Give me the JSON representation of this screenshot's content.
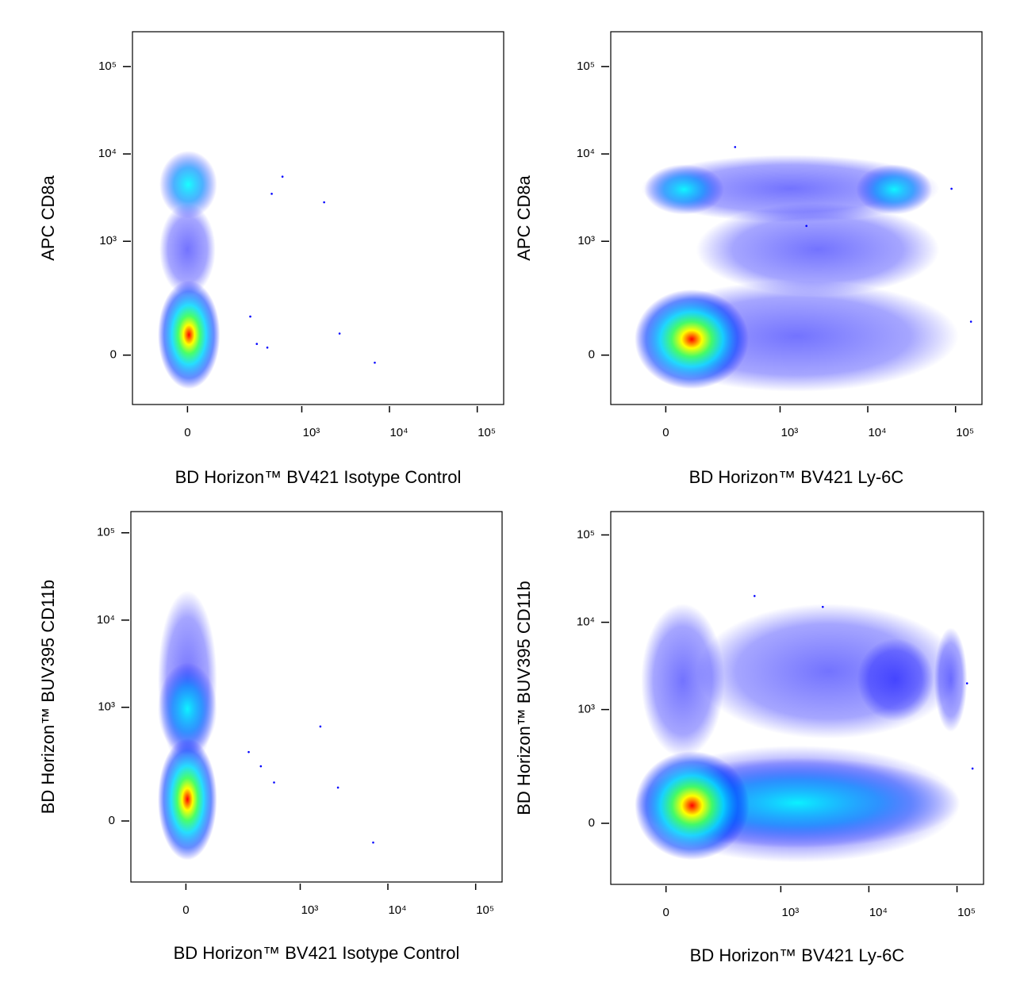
{
  "chart_data": [
    {
      "type": "scatter",
      "scale": "logicle",
      "xlabel": "BD Horizon™ BV421 Isotype Control",
      "ylabel": "APC CD8a",
      "xlim": [
        -200,
        200000
      ],
      "ylim": [
        -170,
        250000
      ],
      "xticks": [
        0,
        {
          "value": 1000,
          "label": "10³"
        },
        {
          "value": 10000,
          "label": "10⁴"
        },
        {
          "value": 100000,
          "label": "10⁵"
        }
      ],
      "yticks": [
        0,
        {
          "value": 1000,
          "label": "10³"
        },
        {
          "value": 10000,
          "label": "10⁴"
        },
        {
          "value": 100000,
          "label": "10⁵"
        }
      ],
      "populations": [
        {
          "x": [
            -70,
            70
          ],
          "y": [
            250,
            2500
          ],
          "color": "#0000ff"
        },
        {
          "x": [
            -70,
            75
          ],
          "y": [
            2000,
            10000
          ],
          "color": "#00ffff"
        },
        {
          "x": [
            -75,
            85
          ],
          "y": [
            -90,
            320
          ],
          "color": "#ff0000"
        }
      ],
      "events": {
        "x": [
          300,
          450,
          600,
          1800,
          2700,
          6800,
          250,
          400
        ],
        "y": [
          30,
          3500,
          5500,
          2800,
          60,
          -20,
          120,
          20
        ],
        "color": "#0000ff"
      }
    },
    {
      "type": "scatter",
      "scale": "logicle",
      "xlabel": "BD Horizon™ BV421 Ly-6C",
      "ylabel": "APC CD8a",
      "xlim": [
        -200,
        200000
      ],
      "ylim": [
        -170,
        250000
      ],
      "xticks": [
        0,
        {
          "value": 1000,
          "label": "10³"
        },
        {
          "value": 10000,
          "label": "10⁴"
        },
        {
          "value": 100000,
          "label": "10⁵"
        }
      ],
      "yticks": [
        0,
        {
          "value": 1000,
          "label": "10³"
        },
        {
          "value": 10000,
          "label": "10⁴"
        },
        {
          "value": 100000,
          "label": "10⁵"
        }
      ],
      "populations": [
        {
          "x": [
            100,
            60000
          ],
          "y": [
            250,
            2500
          ],
          "color": "#0000ff"
        },
        {
          "x": [
            -60,
            60000
          ],
          "y": [
            1800,
            9000
          ],
          "color": "#0000ff"
        },
        {
          "x": [
            -50,
            200
          ],
          "y": [
            2200,
            7000
          ],
          "color": "#00ffff"
        },
        {
          "x": [
            8000,
            50000
          ],
          "y": [
            2200,
            7000
          ],
          "color": "#00ffff"
        },
        {
          "x": [
            -80,
            100000
          ],
          "y": [
            -100,
            320
          ],
          "color": "#0000ff"
        },
        {
          "x": [
            -80,
            400
          ],
          "y": [
            -90,
            250
          ],
          "color": "#ff0000"
        }
      ],
      "events": {
        "x": [
          150000,
          90000,
          300,
          2000
        ],
        "y": [
          100,
          4000,
          12000,
          1500
        ],
        "color": "#0000ff"
      }
    },
    {
      "type": "scatter",
      "scale": "logicle",
      "xlabel": "BD Horizon™ BV421 Isotype Control",
      "ylabel": "BD Horizon™ BUV395 CD11b",
      "xlim": [
        -200,
        200000
      ],
      "ylim": [
        -240,
        175000
      ],
      "xticks": [
        0,
        {
          "value": 1000,
          "label": "10³"
        },
        {
          "value": 10000,
          "label": "10⁴"
        },
        {
          "value": 100000,
          "label": "10⁵"
        }
      ],
      "yticks": [
        0,
        {
          "value": 1000,
          "label": "10³"
        },
        {
          "value": 10000,
          "label": "10⁴"
        },
        {
          "value": 100000,
          "label": "10⁵"
        }
      ],
      "populations": [
        {
          "x": [
            -70,
            80
          ],
          "y": [
            200,
            20000
          ],
          "color": "#0000ff"
        },
        {
          "x": [
            -70,
            80
          ],
          "y": [
            300,
            3000
          ],
          "color": "#00ffff"
        },
        {
          "x": [
            -70,
            80
          ],
          "y": [
            -110,
            400
          ],
          "color": "#ff0000"
        }
      ],
      "events": {
        "x": [
          250,
          350,
          500,
          1700,
          2700,
          6800
        ],
        "y": [
          300,
          200,
          120,
          600,
          100,
          -60
        ],
        "color": "#0000ff"
      }
    },
    {
      "type": "scatter",
      "scale": "logicle",
      "xlabel": "BD Horizon™ BV421 Ly-6C",
      "ylabel": "BD Horizon™ BUV395 CD11b",
      "xlim": [
        -200,
        200000
      ],
      "ylim": [
        -240,
        185000
      ],
      "xticks": [
        0,
        {
          "value": 1000,
          "label": "10³"
        },
        {
          "value": 10000,
          "label": "10⁴"
        },
        {
          "value": 100000,
          "label": "10⁵"
        }
      ],
      "yticks": [
        0,
        {
          "value": 1000,
          "label": "10³"
        },
        {
          "value": 10000,
          "label": "10⁴"
        },
        {
          "value": 100000,
          "label": "10⁵"
        }
      ],
      "populations": [
        {
          "x": [
            100,
            100000
          ],
          "y": [
            500,
            15000
          ],
          "color": "#0000ff"
        },
        {
          "x": [
            -60,
            200
          ],
          "y": [
            300,
            15000
          ],
          "color": "#0000ff"
        },
        {
          "x": [
            8000,
            50000
          ],
          "y": [
            800,
            6000
          ],
          "color": "#0000ff"
        },
        {
          "x": [
            60000,
            120000
          ],
          "y": [
            600,
            8000
          ],
          "color": "#0000ff"
        },
        {
          "x": [
            -80,
            100000
          ],
          "y": [
            -110,
            350
          ],
          "color": "#0000ff"
        },
        {
          "x": [
            -80,
            100000
          ],
          "y": [
            -60,
            250
          ],
          "color": "#00ffff"
        },
        {
          "x": [
            -80,
            400
          ],
          "y": [
            -100,
            300
          ],
          "color": "#ff0000"
        }
      ],
      "events": {
        "x": [
          150000,
          130000,
          500,
          3000
        ],
        "y": [
          200,
          2000,
          20000,
          15000
        ],
        "color": "#0000ff"
      }
    }
  ]
}
